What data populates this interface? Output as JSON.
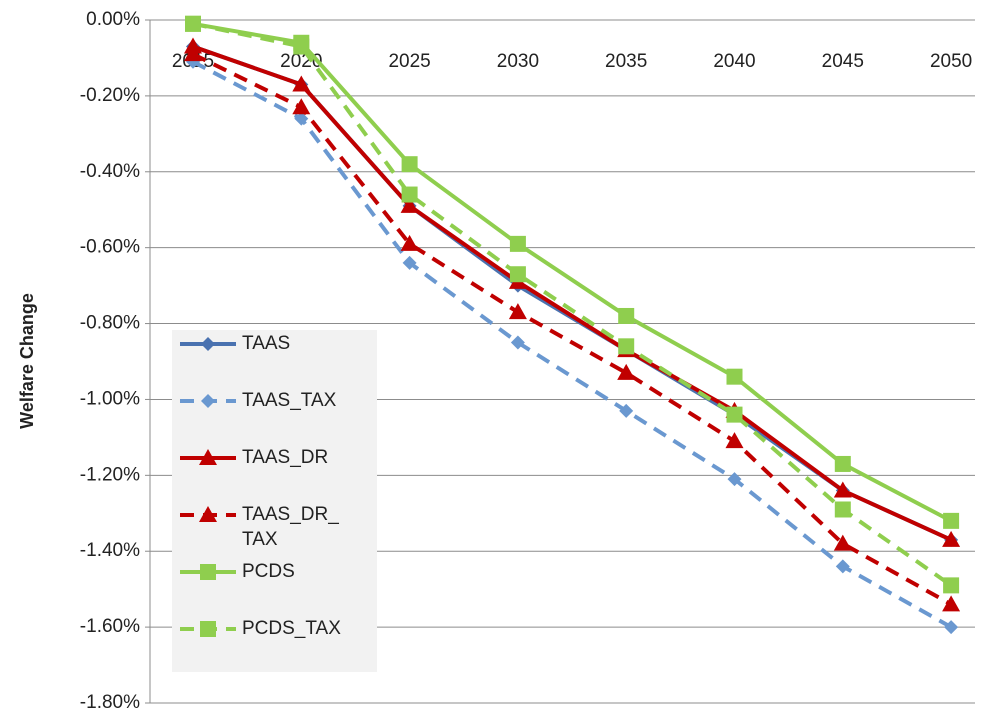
{
  "chart_data": {
    "type": "line",
    "y_label": "Welfare Change",
    "categories": [
      "2015",
      "2020",
      "2025",
      "2030",
      "2035",
      "2040",
      "2045",
      "2050"
    ],
    "series": [
      {
        "name": "TAAS",
        "color": "#4a72b0",
        "dash": false,
        "marker": "diamond",
        "values": [
          -0.07,
          -0.17,
          -0.49,
          -0.7,
          -0.87,
          -1.04,
          -1.24,
          -1.37
        ]
      },
      {
        "name": "TAAS_TAX",
        "color": "#6a98d0",
        "dash": true,
        "marker": "diamond",
        "values": [
          -0.11,
          -0.26,
          -0.64,
          -0.85,
          -1.03,
          -1.21,
          -1.44,
          -1.6
        ]
      },
      {
        "name": "TAAS_DR",
        "color": "#c00000",
        "dash": false,
        "marker": "triangle",
        "values": [
          -0.07,
          -0.17,
          -0.49,
          -0.69,
          -0.87,
          -1.03,
          -1.24,
          -1.37
        ]
      },
      {
        "name": "TAAS_DR_TAX",
        "color": "#c00000",
        "dash": true,
        "marker": "triangle",
        "values": [
          -0.09,
          -0.23,
          -0.59,
          -0.77,
          -0.93,
          -1.11,
          -1.38,
          -1.54
        ]
      },
      {
        "name": "PCDS",
        "color": "#8fce4e",
        "dash": false,
        "marker": "square",
        "values": [
          -0.01,
          -0.06,
          -0.38,
          -0.59,
          -0.78,
          -0.94,
          -1.17,
          -1.32
        ]
      },
      {
        "name": "PCDS_TAX",
        "color": "#8fce4e",
        "dash": true,
        "marker": "square",
        "values": [
          -0.01,
          -0.07,
          -0.46,
          -0.67,
          -0.86,
          -1.04,
          -1.29,
          -1.49
        ]
      }
    ],
    "ylim": [
      -1.8,
      0
    ],
    "yticks": [
      {
        "value": 0,
        "label": "0.00%"
      },
      {
        "value": -0.2,
        "label": "-0.20%"
      },
      {
        "value": -0.4,
        "label": "-0.40%"
      },
      {
        "value": -0.6,
        "label": "-0.60%"
      },
      {
        "value": -0.8,
        "label": "-0.80%"
      },
      {
        "value": -1.0,
        "label": "-1.00%"
      },
      {
        "value": -1.2,
        "label": "-1.20%"
      },
      {
        "value": -1.4,
        "label": "-1.40%"
      },
      {
        "value": -1.6,
        "label": "-1.60%"
      },
      {
        "value": -1.8,
        "label": "-1.80%"
      }
    ],
    "grid": true
  }
}
